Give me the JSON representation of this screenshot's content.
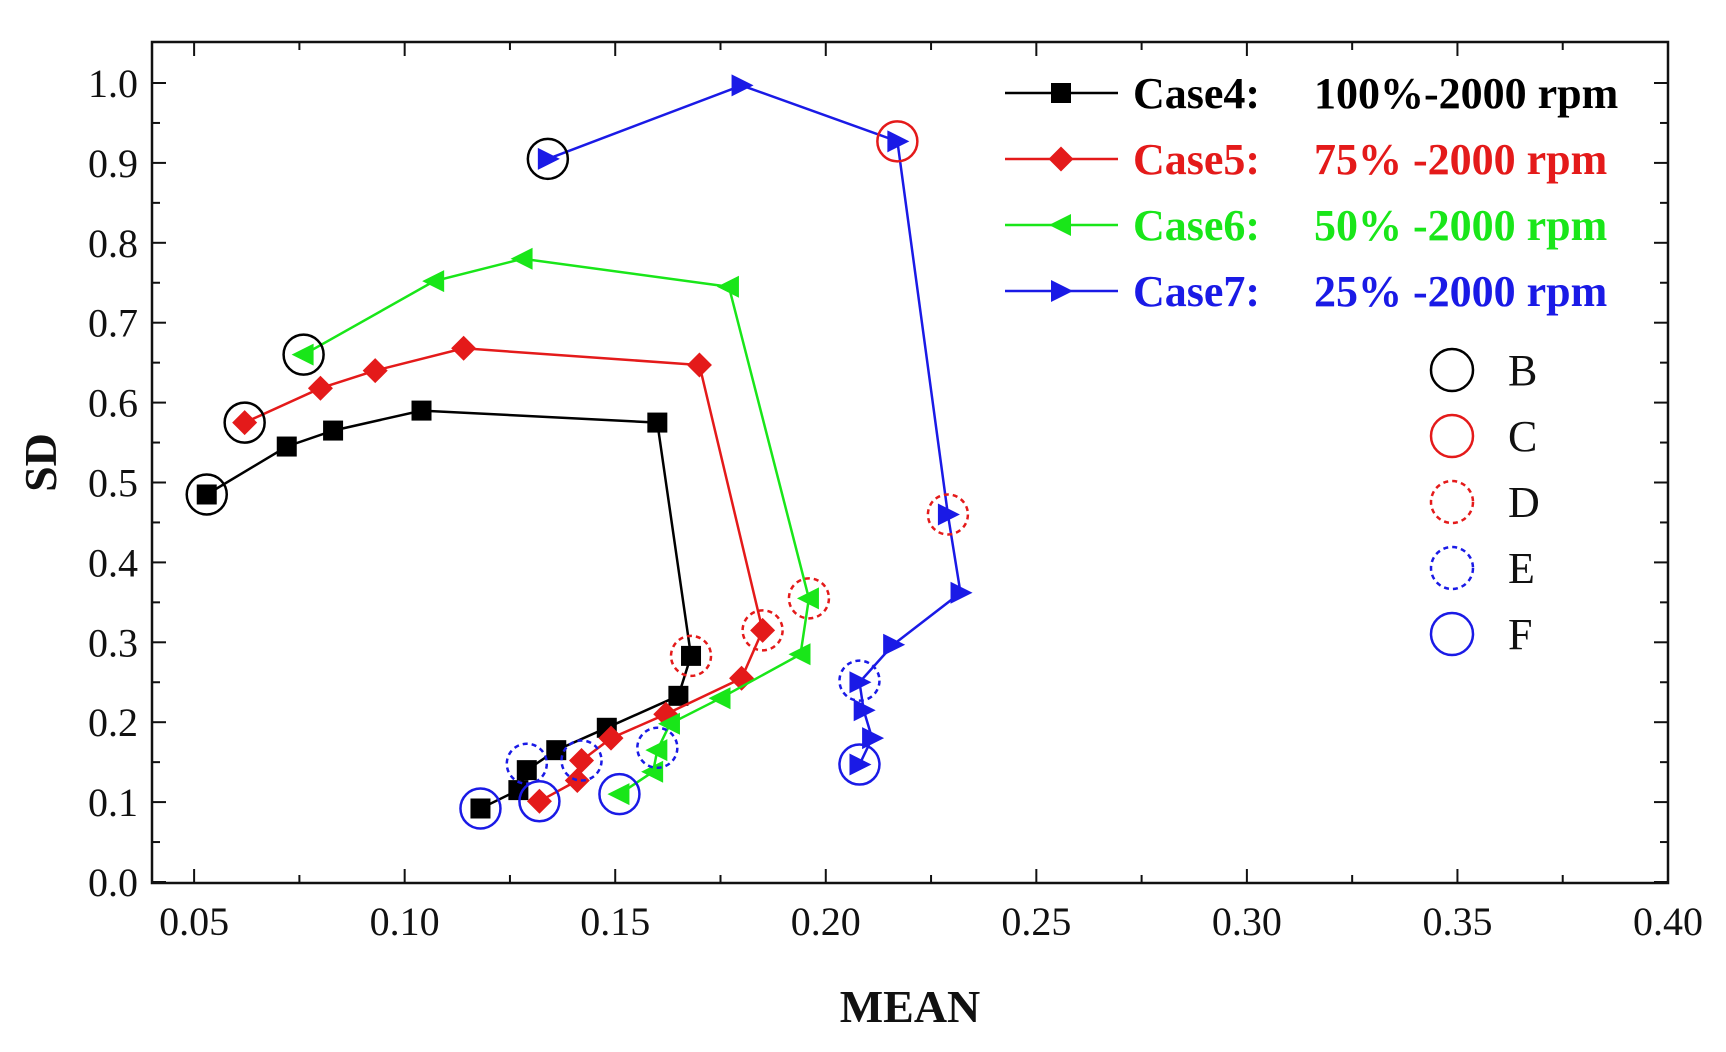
{
  "chart_data": {
    "type": "line",
    "title": "",
    "xlabel": "MEAN",
    "ylabel": "SD",
    "xlim": [
      0.04,
      0.4
    ],
    "ylim": [
      0.0,
      1.05
    ],
    "xticks": [
      0.05,
      0.1,
      0.15,
      0.2,
      0.25,
      0.3,
      0.35,
      0.4
    ],
    "xtick_labels": [
      "0.05",
      "0.10",
      "0.15",
      "0.20",
      "0.25",
      "0.30",
      "0.35",
      "0.40"
    ],
    "yticks": [
      0.0,
      0.1,
      0.2,
      0.3,
      0.4,
      0.5,
      0.6,
      0.7,
      0.8,
      0.9,
      1.0
    ],
    "ytick_labels": [
      "0.0",
      "0.1",
      "0.2",
      "0.3",
      "0.4",
      "0.5",
      "0.6",
      "0.7",
      "0.8",
      "0.9",
      "1.0"
    ],
    "grid": false,
    "legend_position": "top-right",
    "series": [
      {
        "name": "Case4",
        "label_a": "Case4:",
        "label_b": "100%-2000 rpm",
        "color": "#000000",
        "marker": "square",
        "x": [
          0.053,
          0.072,
          0.083,
          0.104,
          0.16,
          0.168,
          0.165,
          0.148,
          0.136,
          0.129,
          0.127,
          0.118
        ],
        "y": [
          0.485,
          0.545,
          0.565,
          0.59,
          0.575,
          0.283,
          0.233,
          0.193,
          0.165,
          0.14,
          0.115,
          0.092
        ]
      },
      {
        "name": "Case5",
        "label_a": "Case5:",
        "label_b": "75%  -2000 rpm",
        "color": "#e41a1a",
        "marker": "diamond",
        "x": [
          0.062,
          0.08,
          0.093,
          0.114,
          0.17,
          0.185,
          0.18,
          0.162,
          0.149,
          0.142,
          0.141,
          0.132
        ],
        "y": [
          0.575,
          0.618,
          0.64,
          0.668,
          0.647,
          0.315,
          0.255,
          0.21,
          0.18,
          0.152,
          0.127,
          0.101
        ]
      },
      {
        "name": "Case6",
        "label_a": "Case6:",
        "label_b": "50%  -2000 rpm",
        "color": "#19e619",
        "marker": "triangle-left",
        "x": [
          0.076,
          0.107,
          0.128,
          0.177,
          0.196,
          0.194,
          0.175,
          0.163,
          0.16,
          0.159,
          0.151
        ],
        "y": [
          0.66,
          0.752,
          0.78,
          0.745,
          0.355,
          0.285,
          0.23,
          0.198,
          0.165,
          0.138,
          0.11
        ]
      },
      {
        "name": "Case7",
        "label_a": "Case7:",
        "label_b": "25%  -2000 rpm",
        "color": "#1a1ae6",
        "marker": "triangle-right",
        "x": [
          0.134,
          0.18,
          0.217,
          0.229,
          0.232,
          0.216,
          0.208,
          0.209,
          0.211,
          0.208
        ],
        "y": [
          0.905,
          0.997,
          0.927,
          0.46,
          0.362,
          0.297,
          0.25,
          0.215,
          0.18,
          0.147
        ]
      }
    ],
    "annotation_legend": [
      {
        "label": "B",
        "color": "#000000",
        "style": "solid"
      },
      {
        "label": "C",
        "color": "#e41a1a",
        "style": "solid"
      },
      {
        "label": "D",
        "color": "#e41a1a",
        "style": "dashed"
      },
      {
        "label": "E",
        "color": "#1a1ae6",
        "style": "dashed"
      },
      {
        "label": "F",
        "color": "#1a1ae6",
        "style": "solid"
      }
    ],
    "circle_annotations": [
      {
        "type": "B",
        "x": 0.053,
        "y": 0.485
      },
      {
        "type": "B",
        "x": 0.062,
        "y": 0.575
      },
      {
        "type": "B",
        "x": 0.076,
        "y": 0.66
      },
      {
        "type": "B",
        "x": 0.134,
        "y": 0.905
      },
      {
        "type": "C",
        "x": 0.217,
        "y": 0.927
      },
      {
        "type": "D",
        "x": 0.168,
        "y": 0.283
      },
      {
        "type": "D",
        "x": 0.185,
        "y": 0.315
      },
      {
        "type": "D",
        "x": 0.196,
        "y": 0.355
      },
      {
        "type": "D",
        "x": 0.229,
        "y": 0.46
      },
      {
        "type": "E",
        "x": 0.129,
        "y": 0.148
      },
      {
        "type": "E",
        "x": 0.142,
        "y": 0.152
      },
      {
        "type": "E",
        "x": 0.16,
        "y": 0.168
      },
      {
        "type": "E",
        "x": 0.208,
        "y": 0.252
      },
      {
        "type": "F",
        "x": 0.118,
        "y": 0.092
      },
      {
        "type": "F",
        "x": 0.132,
        "y": 0.101
      },
      {
        "type": "F",
        "x": 0.151,
        "y": 0.11
      },
      {
        "type": "F",
        "x": 0.208,
        "y": 0.147
      }
    ]
  }
}
